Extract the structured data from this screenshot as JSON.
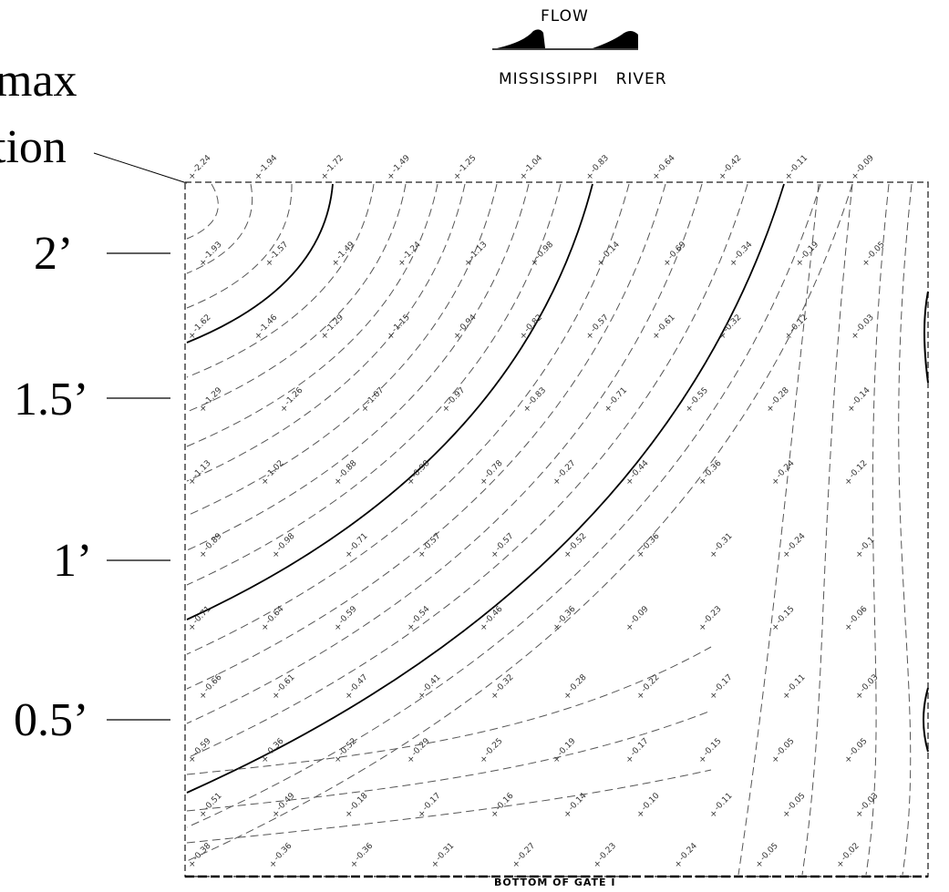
{
  "annotations": {
    "max_location": [
      "max",
      "tion"
    ],
    "depth_markers": [
      {
        "label": "2’",
        "y": 2
      },
      {
        "label": "1.5’",
        "y": 1.5
      },
      {
        "label": "1’",
        "y": 1
      },
      {
        "label": "0.5’",
        "y": 0.5
      }
    ]
  },
  "header": {
    "flow_label": "FLOW",
    "river_label": "MISSISSIPPI   RIVER"
  },
  "footer": {
    "bottom_label": "BOTTOM OF GATE I"
  },
  "contour_labels": [
    "-2.24",
    "-1.94",
    "-1.72",
    "-1.49",
    "-1.25",
    "-1.04",
    "-0.83",
    "-0.64",
    "-0.42",
    "-0.11",
    "-0.09",
    "-1.93",
    "-1.57",
    "-1.49",
    "-1.24",
    "-1.13",
    "-0.98",
    "-0.14",
    "-0.69",
    "-0.34",
    "-0.19",
    "-0.05",
    "-1.62",
    "-1.46",
    "-1.29",
    "-1.15",
    "-0.94",
    "-0.82",
    "-0.57",
    "-0.61",
    "-0.32",
    "-0.12",
    "-0.03",
    "-1.29",
    "-1.26",
    "-1.07",
    "-0.97",
    "-0.83",
    "-0.71",
    "-0.55",
    "-0.28",
    "-0.14",
    "-1.13",
    "-1.02",
    "-0.88",
    "-0.98",
    "-0.78",
    "-0.27",
    "-0.44",
    "-0.36",
    "-0.24",
    "-0.12",
    "-0.89",
    "-0.98",
    "-0.71",
    "-0.57",
    "-0.57",
    "-0.52",
    "-0.36",
    "-0.31",
    "-0.24",
    "-0.1",
    "-0.71",
    "-0.64",
    "-0.59",
    "-0.54",
    "-0.46",
    "-0.36",
    "-0.09",
    "-0.23",
    "-0.15",
    "-0.06",
    "-0.66",
    "-0.61",
    "-0.47",
    "-0.41",
    "-0.32",
    "-0.28",
    "-0.22",
    "-0.17",
    "-0.11",
    "-0.03",
    "-0.59",
    "-0.36",
    "-0.52",
    "-0.29",
    "-0.25",
    "-0.19",
    "-0.17",
    "-0.15",
    "-0.05",
    "-0.05",
    "-0.51",
    "-0.49",
    "-0.18",
    "-0.17",
    "-0.16",
    "-0.14",
    "-0.10",
    "-0.11",
    "-0.05",
    "-0.03",
    "-0.38",
    "-0.36",
    "-0.36",
    "-0.31",
    "-0.27",
    "-0.23",
    "-0.24",
    "-0.05",
    "-0.02"
  ]
}
